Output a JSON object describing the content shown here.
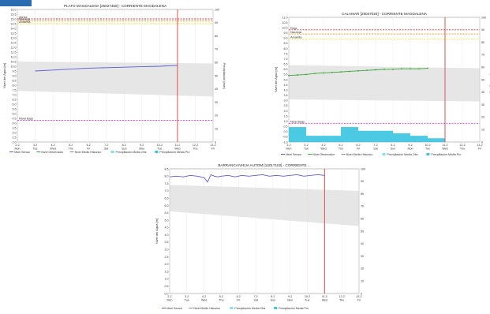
{
  "colors": {
    "sensor": "#5b5bd6",
    "observado": "#3aa63a",
    "historico": "#c8c8c8",
    "precip_obs": "#7ee0f0",
    "precip_pro": "#3ac4e0",
    "alerta_roja": "#e03030",
    "alerta_naranja": "#f09020",
    "alerta_amarilla": "#f0e030",
    "alerta_fase": "#e030e0",
    "now_line": "#e05050"
  },
  "chart_data": [
    {
      "type": "line",
      "title": "PLATO MAGDALENA   [25027450] - CORRIENTE MAGDALENA",
      "ylabel": "Nivel del Agua [m]",
      "y2label": "Precipitación [mm]",
      "ylim": [
        2.0,
        16.0
      ],
      "y2lim": [
        0,
        100
      ],
      "yticks": [
        "2.0",
        "2.5",
        "3.0",
        "3.5",
        "4.0",
        "4.5",
        "5.0",
        "5.5",
        "6.0",
        "6.5",
        "7.0",
        "7.5",
        "8.0",
        "8.5",
        "9.0",
        "9.5",
        "10.0",
        "10.5",
        "11.0",
        "11.5",
        "12.0",
        "12.5",
        "13.0",
        "13.5",
        "14.0",
        "14.5",
        "15.0",
        "15.5",
        "16.0"
      ],
      "y2ticks": [
        "0",
        "10",
        "20",
        "30",
        "40",
        "50",
        "60",
        "70",
        "80",
        "90",
        "100"
      ],
      "xticks": [
        [
          "2-2",
          "Mon"
        ],
        [
          "3-2",
          "Tue"
        ],
        [
          "4-2",
          "Wed"
        ],
        [
          "5-2",
          "Thu"
        ],
        [
          "6-2",
          "Fri"
        ],
        [
          "7-2",
          "Sat"
        ],
        [
          "8-2",
          "Sun"
        ],
        [
          "9-2",
          "Mon"
        ],
        [
          "10-2",
          "Tue"
        ],
        [
          "11-2",
          "Wed"
        ],
        [
          "12-2",
          "Thu"
        ],
        [
          "13-2",
          "Fri"
        ]
      ],
      "now_index": 9,
      "thresholds": [
        {
          "label": "Alerta",
          "value": 15.0,
          "color": "#e03030"
        },
        {
          "label": "Naranja",
          "value": 14.8,
          "color": "#f09020"
        },
        {
          "label": "Amarilla",
          "value": 14.5,
          "color": "#f0e030"
        },
        {
          "label": "Nivel Bajo",
          "value": 4.3,
          "color": "#e030e0"
        }
      ],
      "series": [
        {
          "name": "Nivel Sensor",
          "kind": "line",
          "color": "#5b5bd6",
          "x": [
            1,
            2,
            3,
            4,
            5,
            6,
            7,
            8,
            9
          ],
          "values": [
            9.5,
            9.6,
            9.7,
            9.8,
            9.85,
            9.9,
            9.95,
            10.0,
            10.1
          ]
        }
      ],
      "band": {
        "name": "Nivel Medio Historico",
        "x": [
          0,
          11
        ],
        "upper": [
          10.5,
          10.3
        ],
        "lower": [
          7.4,
          6.8
        ]
      },
      "precip": [],
      "legend": [
        "Nivel Sensor",
        "Nivel Observador",
        "Nivel Medio Historico",
        "Precipitación Media Obs",
        "Precipitación Media Pro"
      ]
    },
    {
      "type": "line",
      "title": "CALAMAR   [29037020] - CORRIENTE MAGDALENA",
      "ylabel": "Nivel del Agua [m]",
      "y2label": "Precipitación [mm]",
      "ylim": [
        -1.0,
        11.0
      ],
      "y2lim": [
        0,
        100
      ],
      "yticks": [
        "-1.0",
        "-0.5",
        "0.0",
        "0.5",
        "1.0",
        "1.5",
        "2.0",
        "2.5",
        "3.0",
        "3.5",
        "4.0",
        "4.5",
        "5.0",
        "5.5",
        "6.0",
        "6.5",
        "7.0",
        "7.5",
        "8.0",
        "8.5",
        "9.0",
        "9.5",
        "10.0",
        "10.5",
        "11.0"
      ],
      "y2ticks": [
        "0",
        "10",
        "20",
        "30",
        "40",
        "50",
        "60",
        "70",
        "80",
        "90",
        "100"
      ],
      "xticks": [
        [
          "2-2",
          "Mon"
        ],
        [
          "3-2",
          "Tue"
        ],
        [
          "4-2",
          "Wed"
        ],
        [
          "5-2",
          "Thu"
        ],
        [
          "6-2",
          "Fri"
        ],
        [
          "7-2",
          "Sat"
        ],
        [
          "8-2",
          "Sun"
        ],
        [
          "9-2",
          "Mon"
        ],
        [
          "10-2",
          "Tue"
        ],
        [
          "11-2",
          "Wed"
        ],
        [
          "12-2",
          "Thu"
        ],
        [
          "13-2",
          "Fri"
        ]
      ],
      "now_index": 9,
      "thresholds": [
        {
          "label": "Roja",
          "value": 9.8,
          "color": "#e03030"
        },
        {
          "label": "Naranja",
          "value": 9.4,
          "color": "#f09020"
        },
        {
          "label": "Amarilla",
          "value": 8.9,
          "color": "#f0e030"
        },
        {
          "label": "Nivel Bajo",
          "value": 0.8,
          "color": "#e030e0"
        }
      ],
      "series": [
        {
          "name": "Nivel Observador",
          "kind": "points",
          "color": "#3aa63a",
          "x": [
            0,
            0.5,
            1,
            1.5,
            2,
            2.5,
            3,
            3.5,
            4,
            4.5,
            5,
            5.5,
            6,
            6.5,
            7,
            7.5,
            8
          ],
          "values": [
            5.4,
            5.45,
            5.5,
            5.6,
            5.65,
            5.7,
            5.75,
            5.8,
            5.85,
            5.9,
            5.95,
            6.0,
            6.0,
            6.05,
            6.05,
            6.05,
            6.1
          ]
        }
      ],
      "band": {
        "name": "Nivel Medio Historico",
        "x": [
          0,
          11
        ],
        "upper": [
          6.4,
          6.1
        ],
        "lower": [
          3.1,
          2.9
        ]
      },
      "precip": [
        {
          "x0": 0,
          "x1": 1,
          "value": 12,
          "color": "#3ac4e0"
        },
        {
          "x0": 1,
          "x1": 3,
          "value": 5,
          "color": "#3ac4e0"
        },
        {
          "x0": 3,
          "x1": 4,
          "value": 12,
          "color": "#3ac4e0"
        },
        {
          "x0": 4,
          "x1": 6,
          "value": 9,
          "color": "#3ac4e0"
        },
        {
          "x0": 6,
          "x1": 7,
          "value": 7,
          "color": "#3ac4e0"
        },
        {
          "x0": 7,
          "x1": 8,
          "value": 5,
          "color": "#3ac4e0"
        },
        {
          "x0": 8,
          "x1": 9,
          "value": 3,
          "color": "#3ac4e0"
        }
      ],
      "legend": [
        "Nivel Sensor",
        "Nivel Observador",
        "Nivel Medio Historico",
        "Precipitación Media Obs",
        "Precipitación Media Pro"
      ]
    },
    {
      "type": "line",
      "title": "BARRANCA/VIEJA AUTOM [14017102] - CORRIENTE ...",
      "ylabel": "Nivel del Agua [m]",
      "y2label": "Precipitación [mm]",
      "ylim": [
        0.0,
        8.5
      ],
      "y2lim": [
        0,
        100
      ],
      "yticks": [
        "0.0",
        "0.5",
        "1.0",
        "1.5",
        "2.0",
        "2.5",
        "3.0",
        "3.5",
        "4.0",
        "4.5",
        "5.0",
        "5.5",
        "6.0",
        "6.5",
        "7.0",
        "7.5",
        "8.0",
        "8.5"
      ],
      "y2ticks": [
        "0",
        "10",
        "20",
        "30",
        "40",
        "50",
        "60",
        "70",
        "80",
        "90",
        "100"
      ],
      "xticks": [
        [
          "2-2",
          "Mon"
        ],
        [
          "3-2",
          "Tue"
        ],
        [
          "4-2",
          "Wed"
        ],
        [
          "5-2",
          "Thu"
        ],
        [
          "6-2",
          "Fri"
        ],
        [
          "7-2",
          "Sat"
        ],
        [
          "8-2",
          "Sun"
        ],
        [
          "9-2",
          "Mon"
        ],
        [
          "10-2",
          "Tue"
        ],
        [
          "11-2",
          "Wed"
        ],
        [
          "12-2",
          "Thu"
        ],
        [
          "13-2",
          "Fri"
        ]
      ],
      "now_index": 9,
      "thresholds": [],
      "series": [
        {
          "name": "Nivel Sensor",
          "kind": "line",
          "color": "#5b5bd6",
          "x": [
            0,
            0.4,
            0.8,
            1.2,
            1.6,
            2.0,
            2.2,
            2.4,
            2.6,
            2.8,
            3.0,
            3.4,
            3.8,
            4.2,
            4.6,
            5.0,
            5.4,
            5.8,
            6.2,
            6.6,
            7.0,
            7.4,
            7.8,
            8.2,
            8.6,
            9.0
          ],
          "values": [
            7.95,
            8.0,
            7.95,
            8.05,
            8.0,
            7.9,
            7.6,
            8.1,
            8.0,
            7.95,
            8.0,
            8.05,
            7.95,
            8.05,
            8.0,
            8.05,
            8.1,
            8.0,
            8.05,
            8.0,
            8.05,
            8.1,
            8.0,
            8.05,
            8.1,
            8.05
          ]
        }
      ],
      "band": {
        "name": "Nivel Medio Historico",
        "x": [
          0,
          11
        ],
        "upper": [
          7.4,
          7.0
        ],
        "lower": [
          5.6,
          4.6
        ]
      },
      "precip": [],
      "legend": [
        "Nivel Sensor",
        "Nivel Medio Historico",
        "Precipitación Media Obs",
        "Precipitación Media Pro"
      ]
    }
  ]
}
